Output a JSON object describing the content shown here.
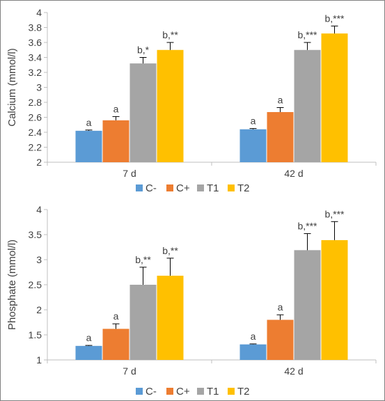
{
  "chart_data": [
    {
      "type": "bar",
      "ylabel": "Calcium (mmol/l)",
      "ylim": [
        2,
        4
      ],
      "yticks": [
        "2",
        "2.2",
        "2.4",
        "2.6",
        "2.8",
        "3",
        "3.2",
        "3.4",
        "3.6",
        "3.8",
        "4"
      ],
      "categories": [
        "7 d",
        "42 d"
      ],
      "series": [
        {
          "name": "C-",
          "color": "#5B9BD5",
          "values": [
            2.42,
            2.44
          ],
          "errors": [
            0.01,
            0.01
          ],
          "labels": [
            "a",
            "a"
          ]
        },
        {
          "name": "C+",
          "color": "#ED7D31",
          "values": [
            2.56,
            2.67
          ],
          "errors": [
            0.05,
            0.06
          ],
          "labels": [
            "a",
            "a"
          ]
        },
        {
          "name": "T1",
          "color": "#A5A5A5",
          "values": [
            3.32,
            3.5
          ],
          "errors": [
            0.08,
            0.1
          ],
          "labels": [
            "b,*",
            "b,***"
          ]
        },
        {
          "name": "T2",
          "color": "#FFC000",
          "values": [
            3.5,
            3.72
          ],
          "errors": [
            0.1,
            0.1
          ],
          "labels": [
            "b,**",
            "b,***"
          ]
        }
      ],
      "legend": {
        "position": "bottom",
        "entries": [
          "C-",
          "C+",
          "T1",
          "T2"
        ]
      },
      "grid": false
    },
    {
      "type": "bar",
      "ylabel": "Phosphate (mmol/l)",
      "ylim": [
        1,
        4
      ],
      "yticks": [
        "1",
        "1.5",
        "2",
        "2.5",
        "3",
        "3.5",
        "4"
      ],
      "categories": [
        "7 d",
        "42 d"
      ],
      "series": [
        {
          "name": "C-",
          "color": "#5B9BD5",
          "values": [
            1.28,
            1.31
          ],
          "errors": [
            0.01,
            0.01
          ],
          "labels": [
            "a",
            "a"
          ]
        },
        {
          "name": "C+",
          "color": "#ED7D31",
          "values": [
            1.62,
            1.8
          ],
          "errors": [
            0.1,
            0.1
          ],
          "labels": [
            "a",
            "a"
          ]
        },
        {
          "name": "T1",
          "color": "#A5A5A5",
          "values": [
            2.5,
            3.19
          ],
          "errors": [
            0.35,
            0.33
          ],
          "labels": [
            "b,**",
            "b,***"
          ]
        },
        {
          "name": "T2",
          "color": "#FFC000",
          "values": [
            2.68,
            3.39
          ],
          "errors": [
            0.35,
            0.37
          ],
          "labels": [
            "b,**",
            "b,***"
          ]
        }
      ],
      "legend": {
        "position": "bottom",
        "entries": [
          "C-",
          "C+",
          "T1",
          "T2"
        ]
      },
      "grid": false
    }
  ]
}
